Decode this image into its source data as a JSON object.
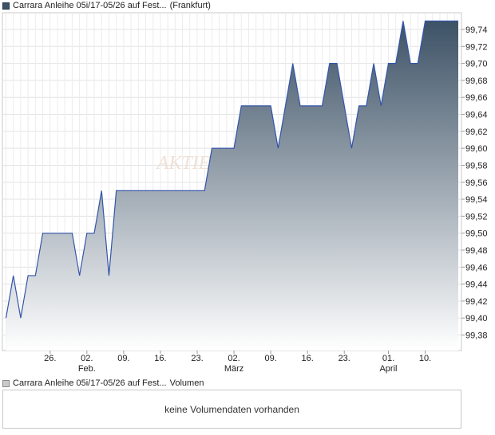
{
  "price_legend": {
    "title": "Carrara Anleihe 05i/17-05/26 auf Fest...",
    "exchange": "(Frankfurt)",
    "color": "#3d5266"
  },
  "volume_legend": {
    "title": "Carrara Anleihe 05i/17-05/26 auf Fest...",
    "label": "Volumen"
  },
  "volume_panel": {
    "message": "keine Volumendaten vorhanden"
  },
  "watermark": "AKTIE",
  "chart_data": {
    "type": "area",
    "y_ticks": [
      "99,38",
      "99,40",
      "99,42",
      "99,44",
      "99,46",
      "99,48",
      "99,50",
      "99,52",
      "99,54",
      "99,56",
      "99,58",
      "99,60",
      "99,62",
      "99,64",
      "99,66",
      "99,68",
      "99,70",
      "99,72",
      "99,74"
    ],
    "ylim": [
      99.365,
      99.755
    ],
    "x_ticks": [
      {
        "day": 17,
        "label": "26."
      },
      {
        "day": 22,
        "label": "02.",
        "month": "Feb."
      },
      {
        "day": 27,
        "label": "09."
      },
      {
        "day": 32,
        "label": "16."
      },
      {
        "day": 37,
        "label": "23."
      },
      {
        "day": 42,
        "label": "02.",
        "month": "März"
      },
      {
        "day": 47,
        "label": "09."
      },
      {
        "day": 52,
        "label": "16."
      },
      {
        "day": 57,
        "label": "23."
      },
      {
        "day": 63,
        "label": "01.",
        "month": "April"
      },
      {
        "day": 68,
        "label": "10."
      }
    ],
    "xlim": [
      11,
      72.5
    ],
    "series": [
      {
        "color": "#3d5266",
        "points": [
          [
            11,
            99.4
          ],
          [
            12,
            99.45
          ],
          [
            13,
            99.4
          ],
          [
            14,
            99.45
          ],
          [
            15,
            99.45
          ],
          [
            16,
            99.5
          ],
          [
            17,
            99.5
          ],
          [
            18,
            99.5
          ],
          [
            19,
            99.5
          ],
          [
            20,
            99.5
          ],
          [
            21,
            99.45
          ],
          [
            22,
            99.5
          ],
          [
            23,
            99.5
          ],
          [
            24,
            99.55
          ],
          [
            25,
            99.45
          ],
          [
            26,
            99.55
          ],
          [
            27,
            99.55
          ],
          [
            28,
            99.55
          ],
          [
            29,
            99.55
          ],
          [
            30,
            99.55
          ],
          [
            31,
            99.55
          ],
          [
            32,
            99.55
          ],
          [
            33,
            99.55
          ],
          [
            34,
            99.55
          ],
          [
            35,
            99.55
          ],
          [
            36,
            99.55
          ],
          [
            37,
            99.55
          ],
          [
            38,
            99.55
          ],
          [
            39,
            99.6
          ],
          [
            40,
            99.6
          ],
          [
            41,
            99.6
          ],
          [
            42,
            99.6
          ],
          [
            43,
            99.65
          ],
          [
            44,
            99.65
          ],
          [
            45,
            99.65
          ],
          [
            46,
            99.65
          ],
          [
            47,
            99.65
          ],
          [
            48,
            99.6
          ],
          [
            49,
            99.65
          ],
          [
            50,
            99.7
          ],
          [
            51,
            99.65
          ],
          [
            52,
            99.65
          ],
          [
            53,
            99.65
          ],
          [
            54,
            99.65
          ],
          [
            55,
            99.7
          ],
          [
            56,
            99.7
          ],
          [
            57,
            99.65
          ],
          [
            58,
            99.6
          ],
          [
            59,
            99.65
          ],
          [
            60,
            99.65
          ],
          [
            61,
            99.7
          ],
          [
            62,
            99.65
          ],
          [
            63,
            99.7
          ],
          [
            64,
            99.7
          ],
          [
            65,
            99.75
          ],
          [
            66,
            99.7
          ],
          [
            67,
            99.7
          ],
          [
            68,
            99.75
          ],
          [
            69,
            99.75
          ],
          [
            70,
            99.75
          ],
          [
            71,
            99.75
          ],
          [
            72,
            99.75
          ],
          [
            72.5,
            99.75
          ]
        ]
      }
    ]
  }
}
